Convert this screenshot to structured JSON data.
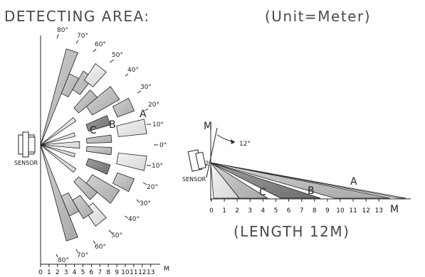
{
  "header": {
    "title": "DETECTING  AREA:",
    "unit": "(Unit=Meter)"
  },
  "top_view": {
    "sensor_label": "SENSOR",
    "zone_labels": [
      "A",
      "B",
      "C"
    ],
    "angle_labels_upper": [
      "80°",
      "70°",
      "60°",
      "50°",
      "40°",
      "30°",
      "20°",
      "10°"
    ],
    "center_angle": "0°",
    "angle_labels_lower": [
      "10°",
      "20°",
      "30°",
      "40°",
      "50°",
      "60°",
      "70°",
      "80°"
    ],
    "axis_ticks": [
      "0",
      "1",
      "2",
      "3",
      "4",
      "5",
      "6",
      "7",
      "8",
      "9",
      "10",
      "11",
      "12",
      "13"
    ],
    "axis_unit": "M"
  },
  "side_view": {
    "sensor_label": "SENSOR",
    "vertical_axis_label": "M",
    "height_value": "2",
    "tilt_angle": "12°",
    "zone_labels": [
      "A",
      "B",
      "C"
    ],
    "axis_ticks": [
      "0",
      "1",
      "2",
      "3",
      "4",
      "5",
      "6",
      "7",
      "8",
      "9",
      "10",
      "11",
      "12",
      "13"
    ],
    "axis_unit": "M",
    "caption": "(LENGTH 12M)"
  }
}
